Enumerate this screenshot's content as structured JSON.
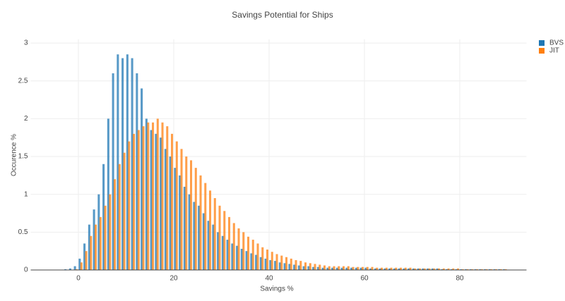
{
  "chart_data": {
    "type": "histogram",
    "title": "Savings Potential for Ships",
    "xlabel": "Savings %",
    "ylabel": "Occurence %",
    "bins": [
      -3,
      -2,
      -1,
      0,
      1,
      2,
      3,
      4,
      5,
      6,
      7,
      8,
      9,
      10,
      11,
      12,
      13,
      14,
      15,
      16,
      17,
      18,
      19,
      20,
      21,
      22,
      23,
      24,
      25,
      26,
      27,
      28,
      29,
      30,
      31,
      32,
      33,
      34,
      35,
      36,
      37,
      38,
      39,
      40,
      41,
      42,
      43,
      44,
      45,
      46,
      47,
      48,
      49,
      50,
      51,
      52,
      53,
      54,
      55,
      56,
      57,
      58,
      59,
      60,
      61,
      62,
      63,
      64,
      65,
      66,
      67,
      68,
      69,
      70,
      71,
      72,
      73,
      74,
      75,
      76,
      77,
      78,
      79,
      80,
      81,
      82,
      83,
      84,
      85,
      86,
      87,
      88,
      89,
      90
    ],
    "series": [
      {
        "name": "BVS",
        "color": "#1f77b4",
        "values": [
          0.01,
          0.02,
          0.05,
          0.15,
          0.35,
          0.6,
          0.8,
          1.0,
          1.4,
          2.0,
          2.6,
          2.85,
          2.8,
          2.85,
          2.8,
          2.6,
          2.4,
          2.0,
          1.85,
          1.8,
          1.75,
          1.6,
          1.5,
          1.35,
          1.25,
          1.1,
          1.0,
          0.9,
          0.85,
          0.75,
          0.65,
          0.6,
          0.5,
          0.45,
          0.4,
          0.35,
          0.32,
          0.28,
          0.25,
          0.22,
          0.2,
          0.17,
          0.15,
          0.13,
          0.12,
          0.1,
          0.09,
          0.08,
          0.07,
          0.06,
          0.05,
          0.05,
          0.04,
          0.04,
          0.03,
          0.03,
          0.03,
          0.03,
          0.03,
          0.03,
          0.03,
          0.03,
          0.03,
          0.03,
          0.02,
          0.02,
          0.02,
          0.02,
          0.02,
          0.02,
          0.02,
          0.02,
          0.02,
          0.02,
          0.02,
          0.02,
          0.02,
          0.02,
          0.02,
          0.01,
          0.01,
          0.01,
          0.01,
          0.01,
          0.01,
          0.01,
          0.01,
          0.01,
          0.01,
          0.01,
          0.01,
          0.01,
          0.01
        ]
      },
      {
        "name": "JIT",
        "color": "#ff7f0e",
        "values": [
          0,
          0,
          0.01,
          0.1,
          0.25,
          0.45,
          0.6,
          0.7,
          0.85,
          1.0,
          1.2,
          1.4,
          1.55,
          1.7,
          1.8,
          1.85,
          1.9,
          1.95,
          1.95,
          2.0,
          1.95,
          1.9,
          1.8,
          1.7,
          1.6,
          1.5,
          1.45,
          1.35,
          1.25,
          1.15,
          1.05,
          0.95,
          0.85,
          0.78,
          0.7,
          0.62,
          0.55,
          0.5,
          0.44,
          0.4,
          0.35,
          0.3,
          0.27,
          0.24,
          0.21,
          0.19,
          0.17,
          0.15,
          0.13,
          0.12,
          0.1,
          0.09,
          0.08,
          0.07,
          0.06,
          0.05,
          0.05,
          0.05,
          0.05,
          0.05,
          0.04,
          0.04,
          0.04,
          0.04,
          0.04,
          0.03,
          0.03,
          0.03,
          0.03,
          0.03,
          0.03,
          0.03,
          0.03,
          0.02,
          0.02,
          0.02,
          0.02,
          0.02,
          0.02,
          0.02,
          0.02,
          0.02,
          0.02,
          0.01,
          0.01,
          0.01,
          0.01,
          0.01,
          0.01,
          0.01,
          0.01,
          0.01,
          0.01
        ]
      }
    ],
    "xlim": [
      -10,
      94
    ],
    "ylim": [
      0,
      3.05
    ],
    "xticks": [
      0,
      20,
      40,
      60,
      80
    ],
    "yticks": [
      0,
      0.5,
      1,
      1.5,
      2,
      2.5,
      3
    ],
    "grid": true,
    "legend": "top-right"
  }
}
